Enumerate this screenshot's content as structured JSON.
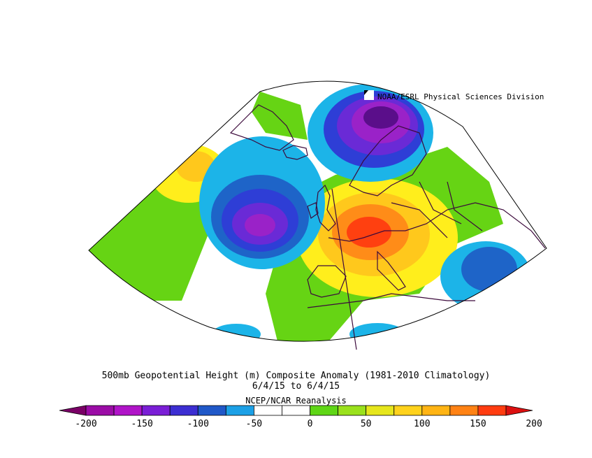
{
  "credit": "NOAA/ESRL Physical Sciences Division",
  "title": {
    "line1": "500mb Geopotential Height (m) Composite Anomaly (1981-2010 Climatology)",
    "line2": "6/4/15  to 6/4/15",
    "line3": "NCEP/NCAR Reanalysis"
  },
  "colorbar": {
    "labels": [
      "-200",
      "-150",
      "-100",
      "-50",
      "0",
      "50",
      "100",
      "150",
      "200"
    ],
    "colors": [
      "#7a0066",
      "#9b0ca6",
      "#b014c8",
      "#7a1ed6",
      "#3c2ed2",
      "#2058c8",
      "#1ca0e6",
      "#ffffff",
      "#ffffff",
      "#5fd616",
      "#9ae11c",
      "#e6e61c",
      "#ffd21c",
      "#ffb414",
      "#ff8214",
      "#ff3c10",
      "#dc1010"
    ]
  },
  "map": {
    "projection": "conic",
    "anomaly_colors": {
      "neg_deep": "#5a0e8a",
      "neg_purple": "#9a22c8",
      "neg_violet": "#6a2ad6",
      "neg_blue": "#2e3ed6",
      "neg_mid": "#1e64c8",
      "neg_light": "#1cb4e8",
      "neutral": "#ffffff",
      "pos_green": "#66d414",
      "pos_yellow": "#ffee1c",
      "pos_gold": "#ffc81c",
      "pos_orange": "#ff8c18",
      "pos_red": "#ff4010"
    },
    "coast_color": "#3c0a3c"
  }
}
